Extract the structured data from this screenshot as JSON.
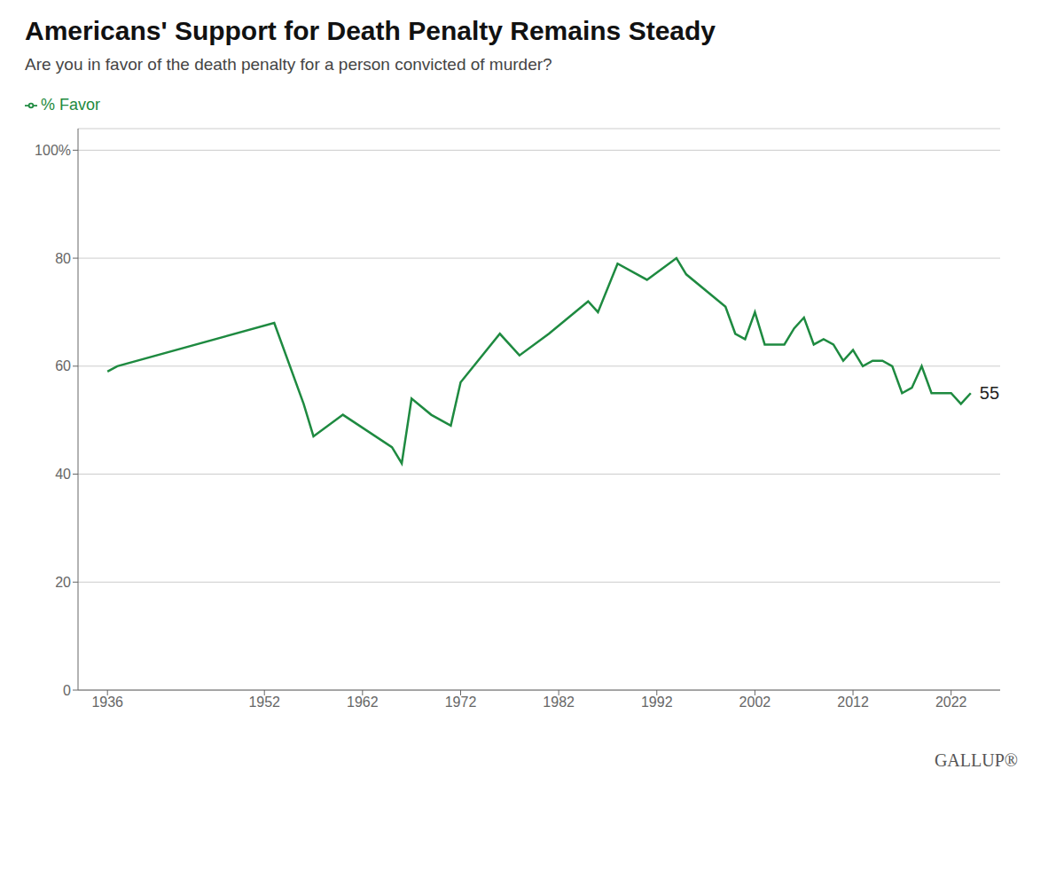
{
  "chart_data": {
    "type": "line",
    "title": "Americans' Support for Death Penalty Remains Steady",
    "subtitle": "Are you in favor of the death penalty for a person convicted of murder?",
    "x": [
      1936,
      1937,
      1953,
      1956,
      1957,
      1960,
      1965,
      1966,
      1967,
      1969,
      1971,
      1972,
      1976,
      1978,
      1981,
      1985,
      1986,
      1988,
      1991,
      1994,
      1995,
      1999,
      2000,
      2001,
      2002,
      2003,
      2004,
      2005,
      2006,
      2007,
      2008,
      2009,
      2010,
      2011,
      2012,
      2013,
      2014,
      2015,
      2016,
      2017,
      2018,
      2019,
      2020,
      2021,
      2022,
      2023,
      2024
    ],
    "series": [
      {
        "name": "% Favor",
        "color": "#1e8a40",
        "values": [
          59,
          60,
          68,
          53,
          47,
          51,
          45,
          42,
          54,
          51,
          49,
          57,
          66,
          62,
          66,
          72,
          70,
          79,
          76,
          80,
          77,
          71,
          66,
          65,
          70,
          64,
          64,
          64,
          67,
          69,
          64,
          65,
          64,
          61,
          63,
          60,
          61,
          61,
          60,
          55,
          56,
          60,
          55,
          55,
          55,
          53,
          55
        ]
      }
    ],
    "xlim": [
      1933,
      2027
    ],
    "ylim": [
      0,
      104
    ],
    "xticks": [
      1936,
      1952,
      1962,
      1972,
      1982,
      1992,
      2002,
      2012,
      2022
    ],
    "yticks": [
      0,
      20,
      40,
      60,
      80,
      {
        "value": 100,
        "label": "100%"
      }
    ],
    "grid": "y",
    "legend": "top-left",
    "annotations": [
      {
        "text": "55",
        "x": 2024,
        "y": 55
      },
      {
        "text": "GALLUP®"
      }
    ]
  }
}
